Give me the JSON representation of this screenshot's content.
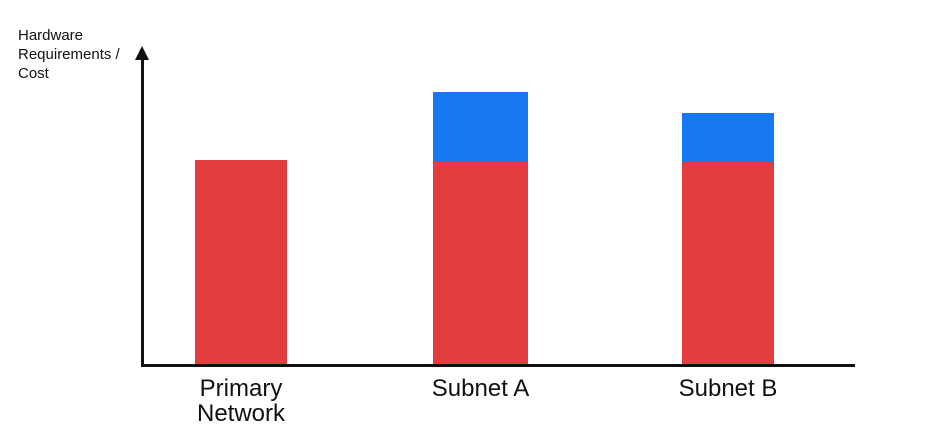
{
  "y_axis_label": "Hardware\nRequirements /\nCost",
  "colors": {
    "red": "#E23C3C",
    "blue": "#1778F2",
    "axis": "#111111",
    "background": "#FFFFFF"
  },
  "chart_data": {
    "type": "bar",
    "stacked": true,
    "categories": [
      "Primary Network",
      "Subnet A",
      "Subnet B"
    ],
    "series": [
      {
        "name": "red",
        "color": "#E23C3C",
        "values": [
          204,
          202,
          202
        ]
      },
      {
        "name": "blue",
        "color": "#1778F2",
        "values": [
          0,
          70,
          49
        ]
      }
    ],
    "title": "",
    "xlabel": "",
    "ylabel": "Hardware Requirements / Cost",
    "units": "relative height in pixels (no numeric axis shown)",
    "legend": false,
    "grid": false
  }
}
